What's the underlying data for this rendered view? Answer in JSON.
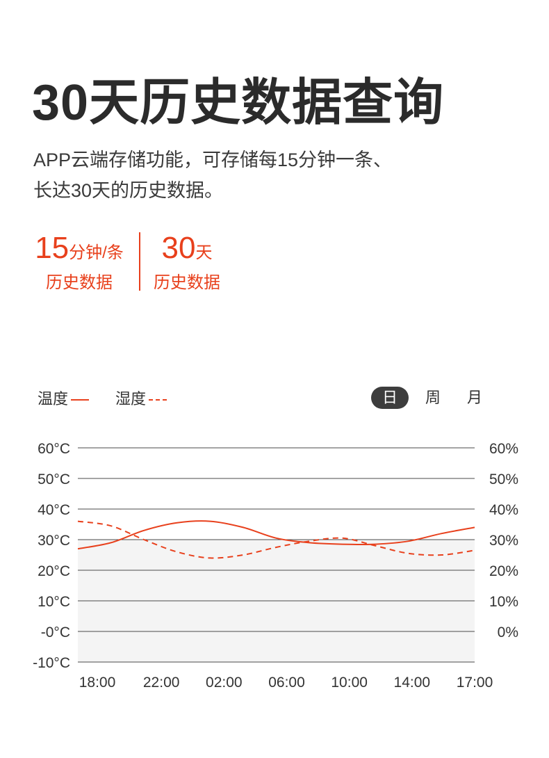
{
  "header": {
    "title": "30天历史数据查询",
    "desc_line1": "APP云端存储功能，可存储每15分钟一条、",
    "desc_line2": "长达30天的历史数据。"
  },
  "stats": [
    {
      "value": "15",
      "unit": "分钟/条",
      "label": "历史数据"
    },
    {
      "value": "30",
      "unit": "天",
      "label": "历史数据"
    }
  ],
  "legend": {
    "solid_label": "温度",
    "dashed_label": "湿度"
  },
  "period_tabs": {
    "day": "日",
    "week": "周",
    "month": "月",
    "active": "day"
  },
  "colors": {
    "accent": "#e8401c",
    "tab_active_bg": "#3d3d3d",
    "plot_fill": "#f4f4f4"
  },
  "chart_data": {
    "type": "line",
    "categories": [
      "18:00",
      "22:00",
      "02:00",
      "06:00",
      "10:00",
      "14:00",
      "17:00"
    ],
    "y_left": {
      "ticks": [
        60,
        50,
        40,
        30,
        20,
        10,
        0,
        -10
      ],
      "tick_labels": [
        "60°C",
        "50°C",
        "40°C",
        "30°C",
        "20°C",
        "10°C",
        "-0°C",
        "-10°C"
      ],
      "range": [
        -10,
        60
      ]
    },
    "y_right": {
      "ticks": [
        60,
        50,
        40,
        30,
        20,
        10,
        0
      ],
      "tick_labels": [
        "60%",
        "50%",
        "40%",
        "30%",
        "20%",
        "10%",
        "0%"
      ],
      "range": [
        -10,
        60
      ]
    },
    "grid": true,
    "legend_position": "top-left",
    "series": [
      {
        "name": "温度",
        "style": "solid",
        "axis": "left",
        "x": [
          0,
          0.5,
          1,
          1.5,
          2,
          2.5,
          3,
          3.5,
          4,
          4.5,
          5,
          5.5,
          6
        ],
        "values": [
          27,
          29,
          33,
          35.5,
          36,
          34,
          30.5,
          29,
          28.5,
          28.5,
          29.5,
          32,
          34
        ]
      },
      {
        "name": "湿度",
        "style": "dashed",
        "axis": "right",
        "x": [
          0,
          0.5,
          1,
          1.5,
          2,
          2.5,
          3,
          3.5,
          4,
          4.5,
          5,
          5.5,
          6
        ],
        "values": [
          36,
          34.5,
          30,
          26,
          24,
          25,
          27.5,
          29.5,
          30.5,
          28,
          25.5,
          25,
          26.5
        ]
      }
    ]
  }
}
